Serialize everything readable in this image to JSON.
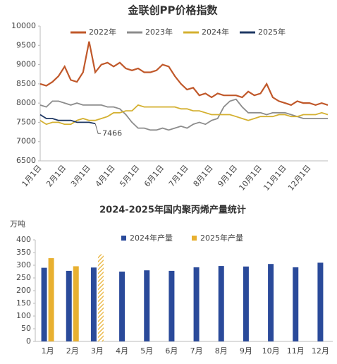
{
  "chart_data": [
    {
      "type": "line",
      "title": "金联创PP价格指数",
      "categories": [
        "1月1日",
        null,
        null,
        null,
        "2月1日",
        null,
        null,
        null,
        "3月1日",
        null,
        null,
        null,
        "4月1日",
        null,
        null,
        null,
        "5月1日",
        null,
        null,
        null,
        "6月1日",
        null,
        null,
        null,
        "7月1日",
        null,
        null,
        null,
        "8月1日",
        null,
        null,
        null,
        "9月1日",
        null,
        null,
        null,
        "10月1日",
        null,
        null,
        null,
        "11月1日",
        null,
        null,
        null,
        "12月1日",
        null,
        null,
        null
      ],
      "series": [
        {
          "name": "2022年",
          "color": "#c0582a",
          "values": [
            8500,
            8450,
            8550,
            8700,
            8950,
            8600,
            8550,
            8800,
            9600,
            8800,
            9000,
            9050,
            8950,
            9050,
            8900,
            8850,
            8900,
            8800,
            8800,
            8850,
            9000,
            8950,
            8700,
            8500,
            8350,
            8400,
            8200,
            8250,
            8150,
            8250,
            8200,
            8200,
            8200,
            8150,
            8300,
            8200,
            8250,
            8500,
            8150,
            8050,
            8000,
            7950,
            8050,
            8000,
            8000,
            7950,
            8000,
            7950
          ]
        },
        {
          "name": "2023年",
          "color": "#8c8c8c",
          "values": [
            7950,
            7900,
            8050,
            8050,
            8000,
            7950,
            8000,
            7950,
            7950,
            7950,
            7950,
            7900,
            7900,
            7850,
            7700,
            7500,
            7350,
            7350,
            7300,
            7300,
            7350,
            7300,
            7350,
            7400,
            7350,
            7450,
            7500,
            7450,
            7550,
            7600,
            7900,
            8050,
            8100,
            7900,
            7750,
            7750,
            7750,
            7700,
            7750,
            7750,
            7750,
            7700,
            7650,
            7600,
            7600,
            7600,
            7600,
            7600
          ]
        },
        {
          "name": "2024年",
          "color": "#d4b030",
          "values": [
            7550,
            7450,
            7500,
            7500,
            7450,
            7450,
            7550,
            7600,
            7550,
            7550,
            7600,
            7650,
            7750,
            7750,
            7800,
            7800,
            7950,
            7900,
            7900,
            7900,
            7900,
            7900,
            7900,
            7850,
            7850,
            7800,
            7800,
            7750,
            7700,
            7700,
            7700,
            7700,
            7650,
            7600,
            7550,
            7600,
            7650,
            7650,
            7650,
            7700,
            7700,
            7650,
            7650,
            7700,
            7700,
            7700,
            7750,
            7700
          ]
        },
        {
          "name": "2025年",
          "color": "#1f3864",
          "values": [
            7700,
            7600,
            7600,
            7550,
            7550,
            7550,
            7500,
            7500,
            7500,
            7466,
            null,
            null,
            null,
            null,
            null,
            null,
            null,
            null,
            null,
            null,
            null,
            null,
            null,
            null,
            null,
            null,
            null,
            null,
            null,
            null,
            null,
            null,
            null,
            null,
            null,
            null,
            null,
            null,
            null,
            null,
            null,
            null,
            null,
            null,
            null,
            null,
            null,
            null
          ]
        }
      ],
      "annotation": "7466",
      "ylim": [
        6500,
        10000
      ],
      "yticks": [
        6500,
        7000,
        7500,
        8000,
        8500,
        9000,
        9500,
        10000
      ]
    },
    {
      "type": "bar",
      "title": "2024-2025年国内聚丙烯产量统计",
      "y_label": "万吨",
      "categories": [
        "1月",
        "2月",
        "3月",
        "4月",
        "5月",
        "6月",
        "7月",
        "8月",
        "9月",
        "10月",
        "11月",
        "12月"
      ],
      "series": [
        {
          "name": "2024年产量",
          "color": "#2a4a9a",
          "values": [
            290,
            278,
            291,
            275,
            280,
            278,
            292,
            297,
            295,
            305,
            292,
            310
          ]
        },
        {
          "name": "2025年产量",
          "color": "#e8b030",
          "values": [
            328,
            296,
            343,
            null,
            null,
            null,
            null,
            null,
            null,
            null,
            null,
            null
          ],
          "hatched": [
            2
          ]
        }
      ],
      "ylim": [
        0,
        400
      ],
      "yticks": [
        0,
        50,
        100,
        150,
        200,
        250,
        300,
        350,
        400
      ]
    }
  ]
}
